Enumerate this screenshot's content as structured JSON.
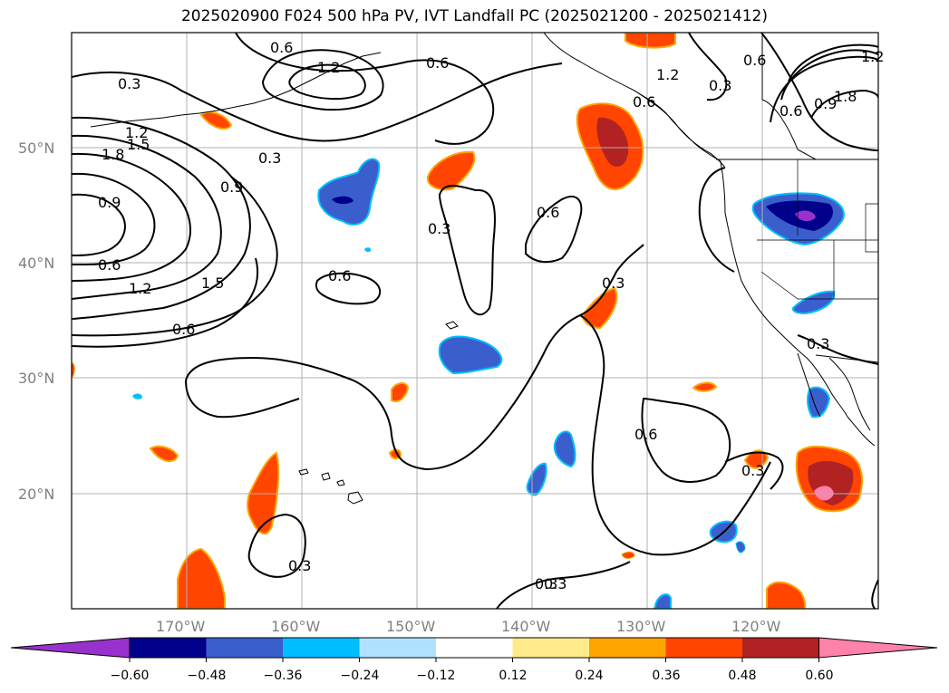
{
  "title": "2025020900 F024 500 hPa PV, IVT Landfall PC (2025021200 - 2025021412)",
  "map": {
    "lat_labels": [
      "50°N",
      "40°N",
      "30°N",
      "20°N"
    ],
    "lon_labels": [
      "170°W",
      "160°W",
      "150°W",
      "140°W",
      "130°W",
      "120°W"
    ],
    "grid": true,
    "contour_labels": [
      "0.3",
      "0.6",
      "1.2",
      "1.5",
      "1.8",
      "0.9",
      "0.6",
      "1.2",
      "1.5",
      "0.6",
      "0.3",
      "0.9",
      "0.6",
      "0.6",
      "1.2",
      "0.3",
      "0.6",
      "0.3",
      "0.6",
      "1.2",
      "0.6",
      "0.3",
      "0.6",
      "0.9",
      "1.8",
      "1.2",
      "0.3",
      "0.3",
      "0.6",
      "0.3",
      "0.3",
      "0.3"
    ]
  },
  "colorbar": {
    "tick_labels": [
      "−0.60",
      "−0.48",
      "−0.36",
      "−0.24",
      "−0.12",
      "0.12",
      "0.24",
      "0.36",
      "0.48",
      "0.60"
    ],
    "colors": [
      "#9932cc",
      "#00008b",
      "#3a5fcd",
      "#00bfff",
      "#b0e2ff",
      "#ffffff",
      "#ffeb8c",
      "#ffa500",
      "#ff4500",
      "#b22222",
      "#ff82ab"
    ]
  },
  "colors": {
    "coast": "#000000",
    "grid": "#b0b0b0",
    "contour": "#000000"
  }
}
